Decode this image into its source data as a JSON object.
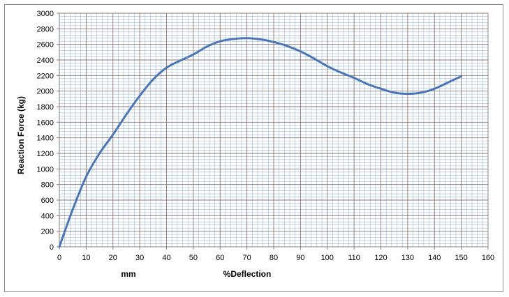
{
  "chart_data": {
    "type": "line",
    "title": "",
    "ylabel": "Reaction Force (kg)",
    "xlabel_unit": "mm",
    "xlabel": "%Deflection",
    "xlim": [
      0,
      160
    ],
    "ylim": [
      0,
      3000
    ],
    "x_ticks": [
      0,
      10,
      20,
      30,
      40,
      50,
      60,
      70,
      80,
      90,
      100,
      110,
      120,
      130,
      140,
      150,
      160
    ],
    "y_ticks": [
      0,
      200,
      400,
      600,
      800,
      1000,
      1200,
      1400,
      1600,
      1800,
      2000,
      2200,
      2400,
      2600,
      2800,
      3000
    ],
    "grid": true,
    "legend": "none",
    "colors": {
      "line": "#4a76b5",
      "major_grid": "#8a7a7a",
      "minor_grid": "#9eb6ce",
      "axis": "#808080"
    },
    "series": [
      {
        "x": [
          0,
          5,
          10,
          15,
          20,
          25,
          30,
          35,
          40,
          45,
          50,
          55,
          60,
          65,
          70,
          75,
          80,
          85,
          90,
          95,
          100,
          105,
          110,
          115,
          120,
          125,
          130,
          135,
          140,
          145,
          150
        ],
        "values": [
          0,
          480,
          900,
          1200,
          1440,
          1700,
          1940,
          2150,
          2300,
          2390,
          2470,
          2570,
          2640,
          2670,
          2680,
          2665,
          2630,
          2580,
          2510,
          2420,
          2320,
          2240,
          2170,
          2090,
          2030,
          1980,
          1965,
          1980,
          2030,
          2110,
          2190
        ]
      }
    ]
  }
}
